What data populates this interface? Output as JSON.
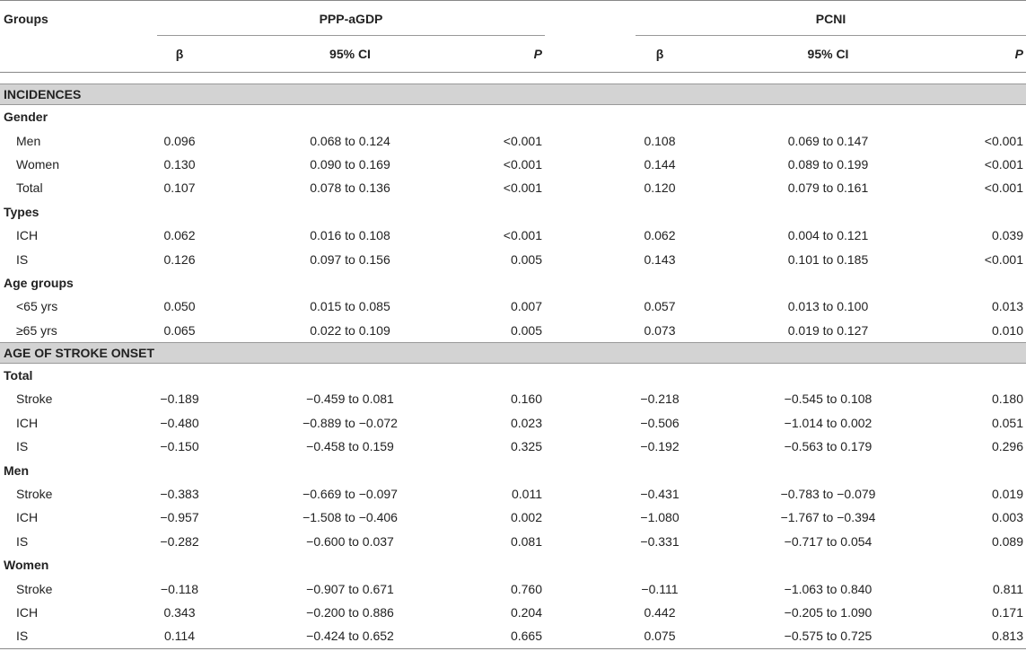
{
  "table": {
    "header": {
      "groups": "Groups",
      "col_groups": [
        "PPP-aGDP",
        "PCNI"
      ],
      "sub": [
        "β",
        "95% CI",
        "P",
        "β",
        "95% CI",
        "P"
      ]
    },
    "sections": [
      {
        "title": "INCIDENCES",
        "groups": [
          {
            "label": "Gender",
            "rows": [
              [
                "Men",
                "0.096",
                "0.068 to 0.124",
                "<0.001",
                "0.108",
                "0.069 to 0.147",
                "<0.001"
              ],
              [
                "Women",
                "0.130",
                "0.090 to 0.169",
                "<0.001",
                "0.144",
                "0.089 to 0.199",
                "<0.001"
              ],
              [
                "Total",
                "0.107",
                "0.078 to 0.136",
                "<0.001",
                "0.120",
                "0.079 to 0.161",
                "<0.001"
              ]
            ]
          },
          {
            "label": "Types",
            "rows": [
              [
                "ICH",
                "0.062",
                "0.016 to 0.108",
                "<0.001",
                "0.062",
                "0.004 to 0.121",
                "0.039"
              ],
              [
                "IS",
                "0.126",
                "0.097 to 0.156",
                "0.005",
                "0.143",
                "0.101 to 0.185",
                "<0.001"
              ]
            ]
          },
          {
            "label": "Age groups",
            "rows": [
              [
                "<65 yrs",
                "0.050",
                "0.015 to 0.085",
                "0.007",
                "0.057",
                "0.013 to 0.100",
                "0.013"
              ],
              [
                "≥65 yrs",
                "0.065",
                "0.022 to 0.109",
                "0.005",
                "0.073",
                "0.019 to 0.127",
                "0.010"
              ]
            ]
          }
        ]
      },
      {
        "title": "AGE OF STROKE ONSET",
        "groups": [
          {
            "label": "Total",
            "rows": [
              [
                "Stroke",
                "−0.189",
                "−0.459 to 0.081",
                "0.160",
                "−0.218",
                "−0.545 to 0.108",
                "0.180"
              ],
              [
                "ICH",
                "−0.480",
                "−0.889 to −0.072",
                "0.023",
                "−0.506",
                "−1.014 to 0.002",
                "0.051"
              ],
              [
                "IS",
                "−0.150",
                "−0.458 to 0.159",
                "0.325",
                "−0.192",
                "−0.563 to 0.179",
                "0.296"
              ]
            ]
          },
          {
            "label": "Men",
            "rows": [
              [
                "Stroke",
                "−0.383",
                "−0.669 to −0.097",
                "0.011",
                "−0.431",
                "−0.783 to −0.079",
                "0.019"
              ],
              [
                "ICH",
                "−0.957",
                "−1.508 to −0.406",
                "0.002",
                "−1.080",
                "−1.767 to −0.394",
                "0.003"
              ],
              [
                "IS",
                "−0.282",
                "−0.600 to 0.037",
                "0.081",
                "−0.331",
                "−0.717 to 0.054",
                "0.089"
              ]
            ]
          },
          {
            "label": "Women",
            "rows": [
              [
                "Stroke",
                "−0.118",
                "−0.907 to 0.671",
                "0.760",
                "−0.111",
                "−1.063 to 0.840",
                "0.811"
              ],
              [
                "ICH",
                "0.343",
                "−0.200 to 0.886",
                "0.204",
                "0.442",
                "−0.205 to 1.090",
                "0.171"
              ],
              [
                "IS",
                "0.114",
                "−0.424 to 0.652",
                "0.665",
                "0.075",
                "−0.575 to 0.725",
                "0.813"
              ]
            ]
          }
        ]
      }
    ]
  }
}
